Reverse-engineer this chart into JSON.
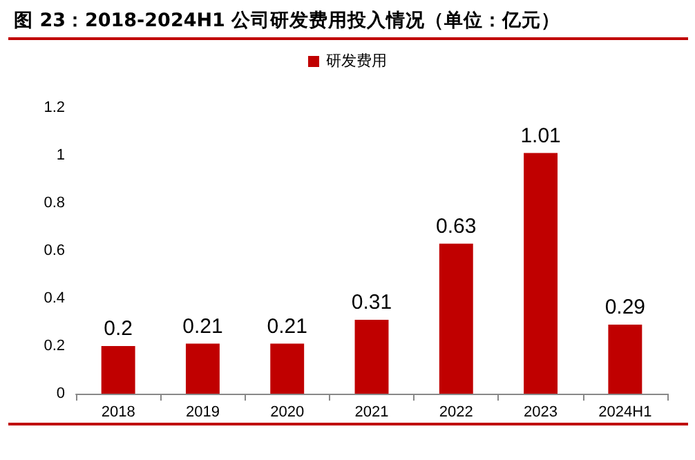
{
  "chart_data": {
    "type": "bar",
    "title": "图 23：2018-2024H1 公司研发费用投入情况（单位：亿元）",
    "categories": [
      "2018",
      "2019",
      "2020",
      "2021",
      "2022",
      "2023",
      "2024H1"
    ],
    "series": [
      {
        "name": "研发费用",
        "color": "#c00000",
        "values": [
          0.2,
          0.21,
          0.21,
          0.31,
          0.63,
          1.01,
          0.29
        ]
      }
    ],
    "ylim": [
      0,
      1.2
    ],
    "yticks": [
      0,
      0.2,
      0.4,
      0.6,
      0.8,
      1,
      1.2
    ],
    "grid": false,
    "legend": "top",
    "data_labels": true
  }
}
